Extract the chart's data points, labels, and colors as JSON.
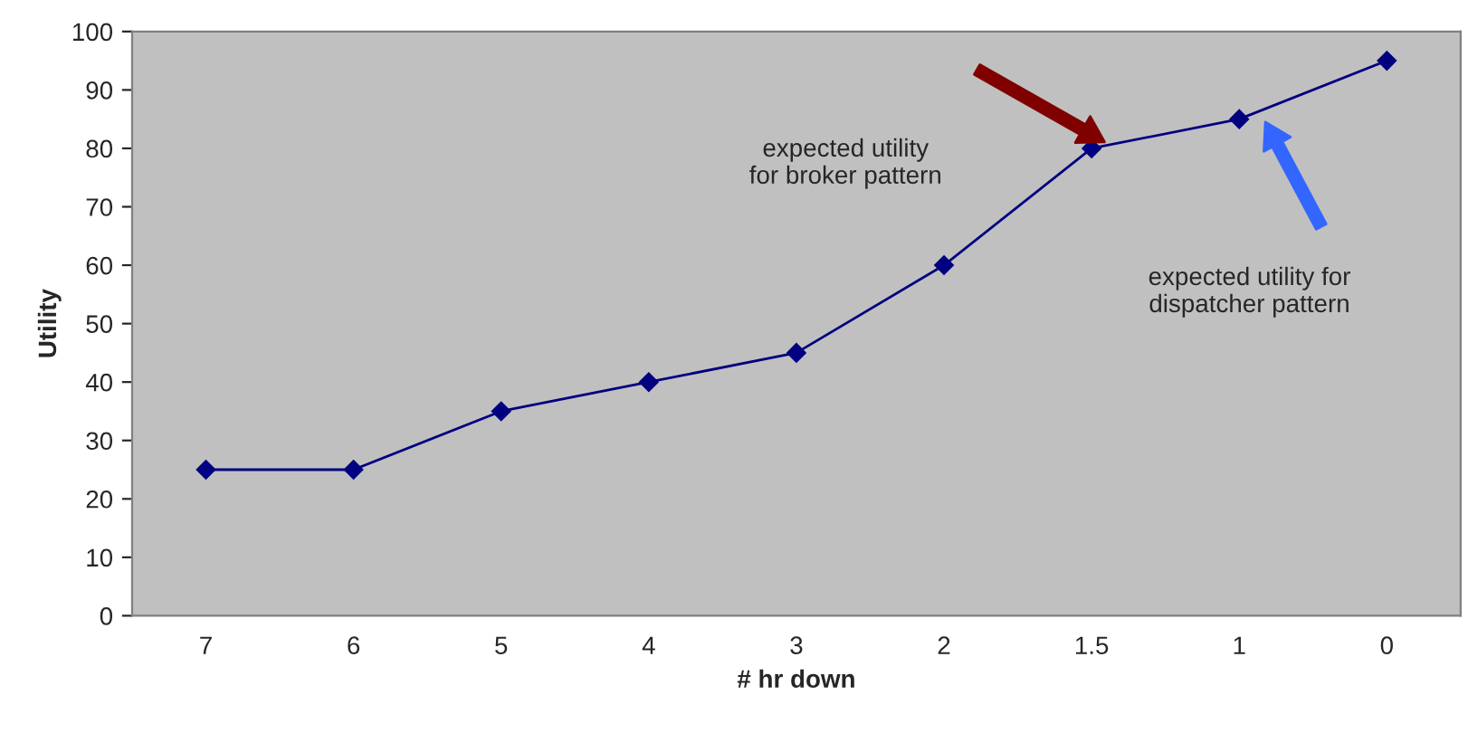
{
  "chart_data": {
    "type": "line",
    "xlabel": "# hr down",
    "ylabel": "Utility",
    "categories": [
      "7",
      "6",
      "5",
      "4",
      "3",
      "2",
      "1.5",
      "1",
      "0"
    ],
    "series": [
      {
        "color": "#000080",
        "values": [
          25,
          25,
          35,
          40,
          45,
          60,
          80,
          85,
          95
        ]
      }
    ],
    "ylim": [
      0,
      100
    ],
    "yticks": [
      0,
      10,
      20,
      30,
      40,
      50,
      60,
      70,
      80,
      90,
      100
    ],
    "marker": "diamond",
    "line_style": "solid",
    "grid": false,
    "legend": false,
    "annotations": [
      "expected utility\nfor broker pattern",
      "expected utility for\ndispatcher pattern"
    ]
  }
}
